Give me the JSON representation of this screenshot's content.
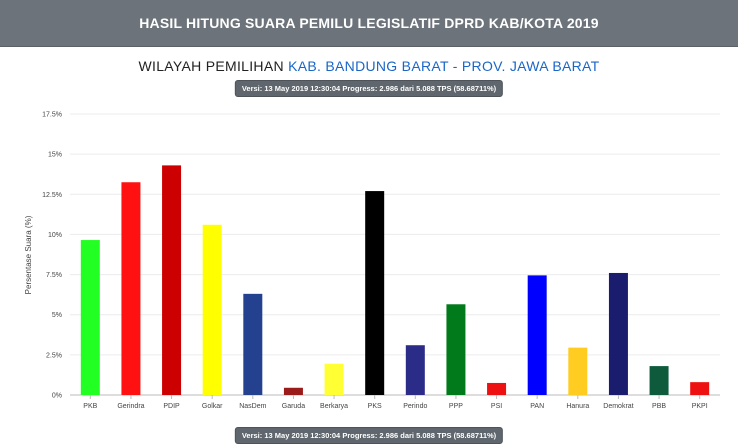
{
  "header": {
    "title": "HASIL HITUNG SUARA PEMILU LEGISLATIF DPRD KAB/KOTA 2019"
  },
  "subtitle": {
    "prefix": "WILAYAH PEMILIHAN",
    "region": "KAB. BANDUNG BARAT - PROV. JAWA BARAT"
  },
  "version_badge": "Versi: 13 May 2019 12:30:04 Progress: 2.986 dari 5.088 TPS (58.68711%)",
  "chart_data": {
    "type": "bar",
    "ylabel": "Persentase Suara (%)",
    "ylim": [
      0,
      17.5
    ],
    "yticks": [
      0,
      2.5,
      5,
      7.5,
      10,
      12.5,
      15,
      17.5
    ],
    "ytick_labels": [
      "0%",
      "2.5%",
      "5%",
      "7.5%",
      "10%",
      "12.5%",
      "15%",
      "17.5%"
    ],
    "grid": true,
    "categories": [
      "PKB",
      "Gerindra",
      "PDIP",
      "Golkar",
      "NasDem",
      "Garuda",
      "Berkarya",
      "PKS",
      "Perindo",
      "PPP",
      "PSI",
      "PAN",
      "Hanura",
      "Demokrat",
      "PBB",
      "PKPI"
    ],
    "values": [
      9.65,
      13.25,
      14.3,
      10.6,
      6.3,
      0.45,
      1.95,
      12.7,
      3.1,
      5.65,
      0.75,
      7.45,
      2.95,
      7.6,
      1.8,
      0.8
    ],
    "colors": [
      "#22ff22",
      "#ff1111",
      "#cc0000",
      "#ffff00",
      "#23418e",
      "#9b1b1b",
      "#ffff33",
      "#000000",
      "#2b2b88",
      "#007a1a",
      "#ee1111",
      "#0000ff",
      "#ffcc22",
      "#1a1d6e",
      "#0d5a3c",
      "#ee1111"
    ]
  }
}
